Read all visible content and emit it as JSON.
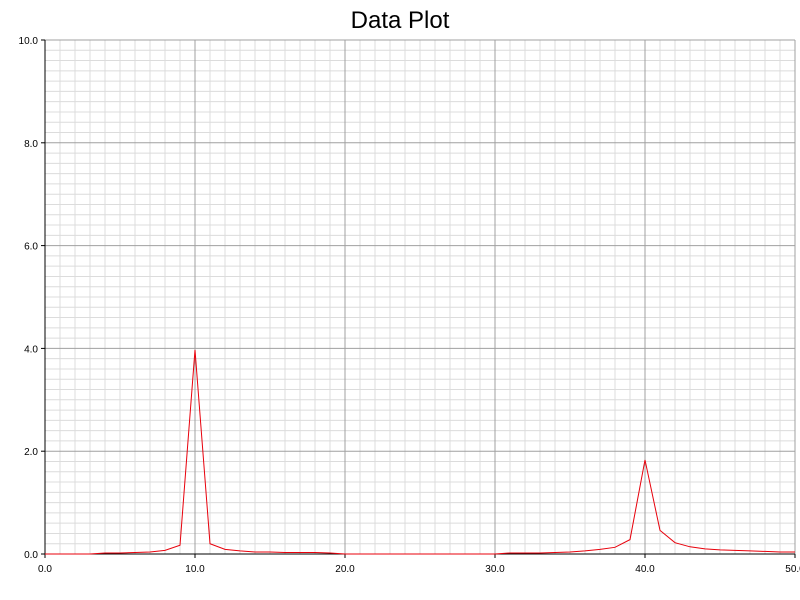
{
  "chart_data": {
    "type": "line",
    "title": "Data Plot",
    "xlabel": "",
    "ylabel": "",
    "xlim": [
      0,
      50
    ],
    "ylim": [
      0,
      10
    ],
    "grid": true,
    "x_ticks": [
      "0.0",
      "10.0",
      "20.0",
      "30.0",
      "40.0",
      "50.0"
    ],
    "y_ticks": [
      "0.0",
      "2.0",
      "4.0",
      "6.0",
      "8.0",
      "10.0"
    ],
    "series": [
      {
        "color": "#e8000b",
        "x": [
          0,
          1,
          2,
          3,
          4,
          5,
          6,
          7,
          8,
          9,
          10,
          11,
          12,
          13,
          14,
          15,
          16,
          17,
          18,
          19,
          20,
          21,
          22,
          23,
          24,
          25,
          26,
          27,
          28,
          29,
          30,
          31,
          32,
          33,
          34,
          35,
          36,
          37,
          38,
          39,
          40,
          41,
          42,
          43,
          44,
          45,
          46,
          47,
          48,
          49,
          50
        ],
        "y": [
          0.0,
          0.0,
          0.0,
          0.0,
          0.02,
          0.02,
          0.03,
          0.04,
          0.07,
          0.17,
          3.97,
          0.2,
          0.09,
          0.06,
          0.04,
          0.04,
          0.03,
          0.03,
          0.03,
          0.02,
          0.0,
          0.0,
          0.0,
          0.0,
          0.0,
          0.0,
          0.0,
          0.0,
          0.0,
          0.0,
          0.0,
          0.02,
          0.02,
          0.02,
          0.03,
          0.04,
          0.06,
          0.09,
          0.13,
          0.28,
          1.83,
          0.46,
          0.22,
          0.14,
          0.1,
          0.08,
          0.07,
          0.06,
          0.05,
          0.04,
          0.04
        ]
      }
    ]
  }
}
